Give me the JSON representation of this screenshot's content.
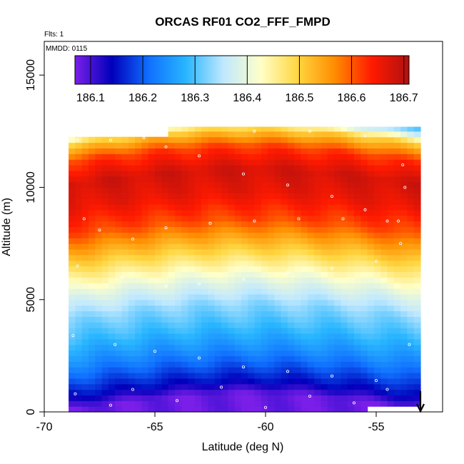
{
  "chart_data": {
    "type": "heatmap",
    "title": "ORCAS RF01 CO2_FFF_FMPD",
    "annotations": {
      "flights": "Flts: 1",
      "date": "MMDD: 0115"
    },
    "xlabel": "Latitude (deg N)",
    "ylabel": "Altitude (m)",
    "xlim": [
      -70,
      -52
    ],
    "ylim": [
      0,
      16500
    ],
    "x_ticks": [
      -70,
      -65,
      -60,
      -55
    ],
    "x_tick_labels": [
      "-70",
      "-65",
      "-60",
      "-55"
    ],
    "y_ticks": [
      0,
      5000,
      10000,
      15000
    ],
    "y_tick_labels": [
      "0",
      "5000",
      "10000",
      "15000"
    ],
    "colorbar": {
      "range": [
        186.07,
        186.71
      ],
      "ticks": [
        186.1,
        186.2,
        186.3,
        186.4,
        186.5,
        186.6,
        186.7
      ],
      "tick_labels": [
        "186.1",
        "186.2",
        "186.3",
        "186.4",
        "186.5",
        "186.6",
        "186.7"
      ],
      "colors": [
        "#7a1fe8",
        "#0000bb",
        "#1070ff",
        "#29b6ff",
        "#bfe8ff",
        "#ffffc8",
        "#ffd640",
        "#ff8c00",
        "#ff1a00",
        "#b01010"
      ]
    },
    "data_extent": {
      "lat_range": [
        -68.9,
        -53
      ],
      "alt_range": [
        0,
        12700
      ]
    },
    "vertical_profile": [
      {
        "alt": 0,
        "value": 186.08
      },
      {
        "alt": 500,
        "value": 186.14
      },
      {
        "alt": 1200,
        "value": 186.19
      },
      {
        "alt": 2000,
        "value": 186.24
      },
      {
        "alt": 3000,
        "value": 186.29
      },
      {
        "alt": 4000,
        "value": 186.33
      },
      {
        "alt": 5000,
        "value": 186.39
      },
      {
        "alt": 5800,
        "value": 186.45
      },
      {
        "alt": 6800,
        "value": 186.53
      },
      {
        "alt": 7800,
        "value": 186.61
      },
      {
        "alt": 9000,
        "value": 186.66
      },
      {
        "alt": 10000,
        "value": 186.68
      },
      {
        "alt": 11000,
        "value": 186.62
      },
      {
        "alt": 11800,
        "value": 186.5
      },
      {
        "alt": 12300,
        "value": 186.34
      },
      {
        "alt": 12700,
        "value": 186.28
      }
    ],
    "flight_track_points": [
      {
        "lat": -68.5,
        "alt": 12100
      },
      {
        "lat": -67,
        "alt": 12100
      },
      {
        "lat": -65.5,
        "alt": 12200
      },
      {
        "lat": -64.5,
        "alt": 11800
      },
      {
        "lat": -63,
        "alt": 11400
      },
      {
        "lat": -61,
        "alt": 10600
      },
      {
        "lat": -59,
        "alt": 10100
      },
      {
        "lat": -57,
        "alt": 9600
      },
      {
        "lat": -55.5,
        "alt": 9000
      },
      {
        "lat": -54,
        "alt": 8500
      },
      {
        "lat": -68.2,
        "alt": 8600
      },
      {
        "lat": -67.5,
        "alt": 8100
      },
      {
        "lat": -66,
        "alt": 7700
      },
      {
        "lat": -64.5,
        "alt": 8200
      },
      {
        "lat": -62.5,
        "alt": 8400
      },
      {
        "lat": -60.5,
        "alt": 8500
      },
      {
        "lat": -58.5,
        "alt": 8600
      },
      {
        "lat": -56.5,
        "alt": 8600
      },
      {
        "lat": -54.5,
        "alt": 8500
      },
      {
        "lat": -68.5,
        "alt": 6500
      },
      {
        "lat": -66.5,
        "alt": 6000
      },
      {
        "lat": -64.5,
        "alt": 5600
      },
      {
        "lat": -63,
        "alt": 5700
      },
      {
        "lat": -61,
        "alt": 5900
      },
      {
        "lat": -59,
        "alt": 6200
      },
      {
        "lat": -57,
        "alt": 6400
      },
      {
        "lat": -55,
        "alt": 6700
      },
      {
        "lat": -68.7,
        "alt": 3400
      },
      {
        "lat": -66.8,
        "alt": 3000
      },
      {
        "lat": -65,
        "alt": 2700
      },
      {
        "lat": -63,
        "alt": 2400
      },
      {
        "lat": -61,
        "alt": 2000
      },
      {
        "lat": -59,
        "alt": 1800
      },
      {
        "lat": -57,
        "alt": 1600
      },
      {
        "lat": -55,
        "alt": 1400
      },
      {
        "lat": -53.5,
        "alt": 3000
      },
      {
        "lat": -68.6,
        "alt": 800
      },
      {
        "lat": -67,
        "alt": 300
      },
      {
        "lat": -66,
        "alt": 1000
      },
      {
        "lat": -64,
        "alt": 500
      },
      {
        "lat": -62,
        "alt": 1100
      },
      {
        "lat": -60,
        "alt": 200
      },
      {
        "lat": -58,
        "alt": 700
      },
      {
        "lat": -56,
        "alt": 400
      },
      {
        "lat": -54.5,
        "alt": 1000
      },
      {
        "lat": -60.5,
        "alt": 12500
      },
      {
        "lat": -58,
        "alt": 12500
      },
      {
        "lat": -55.5,
        "alt": 12300
      },
      {
        "lat": -53.8,
        "alt": 11000
      },
      {
        "lat": -53.7,
        "alt": 10000
      },
      {
        "lat": -53.9,
        "alt": 7500
      }
    ],
    "arrow": {
      "lat": -53,
      "direction": "down"
    }
  }
}
